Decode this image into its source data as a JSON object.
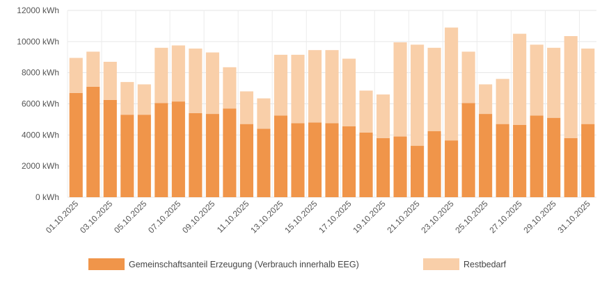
{
  "chart_data": {
    "type": "bar",
    "stacked": true,
    "unit": "kWh",
    "ylim": [
      0,
      12000
    ],
    "yticks": [
      {
        "value": 0,
        "label": "0 kWh"
      },
      {
        "value": 2000,
        "label": "2000 kWh"
      },
      {
        "value": 4000,
        "label": "4000 kWh"
      },
      {
        "value": 6000,
        "label": "6000 kWh"
      },
      {
        "value": 8000,
        "label": "8000 kWh"
      },
      {
        "value": 10000,
        "label": "10000 kWh"
      },
      {
        "value": 12000,
        "label": "12000 kWh"
      }
    ],
    "categories": [
      "01.10.2025",
      "02.10.2025",
      "03.10.2025",
      "04.10.2025",
      "05.10.2025",
      "06.10.2025",
      "07.10.2025",
      "08.10.2025",
      "09.10.2025",
      "10.10.2025",
      "11.10.2025",
      "12.10.2025",
      "13.10.2025",
      "14.10.2025",
      "15.10.2025",
      "16.10.2025",
      "17.10.2025",
      "18.10.2025",
      "19.10.2025",
      "20.10.2025",
      "21.10.2025",
      "22.10.2025",
      "23.10.2025",
      "24.10.2025",
      "25.10.2025",
      "26.10.2025",
      "27.10.2025",
      "28.10.2025",
      "29.10.2025",
      "30.10.2025",
      "31.10.2025"
    ],
    "x_tick_labels_shown": [
      "01.10.2025",
      "03.10.2025",
      "05.10.2025",
      "07.10.2025",
      "09.10.2025",
      "11.10.2025",
      "13.10.2025",
      "15.10.2025",
      "17.10.2025",
      "19.10.2025",
      "21.10.2025",
      "23.10.2025",
      "25.10.2025",
      "27.10.2025",
      "29.10.2025",
      "31.10.2025"
    ],
    "series": [
      {
        "name": "Gemeinschaftsanteil Erzeugung (Verbrauch innerhalb EEG)",
        "color": "#F0954A",
        "values": [
          6700,
          7100,
          6250,
          5300,
          5300,
          6050,
          6150,
          5400,
          5350,
          5700,
          4700,
          4400,
          5250,
          4750,
          4800,
          4750,
          4550,
          4150,
          3800,
          3900,
          3300,
          4250,
          3650,
          6050,
          5350,
          4700,
          4650,
          5250,
          5100,
          3800,
          4700
        ]
      },
      {
        "name": "Restbedarf",
        "color": "#F9CFA9",
        "values": [
          2250,
          2250,
          2450,
          2100,
          1950,
          3550,
          3600,
          4150,
          3950,
          2650,
          2100,
          1950,
          3900,
          4400,
          4650,
          4700,
          4350,
          2700,
          2800,
          6050,
          6500,
          5350,
          7250,
          3300,
          1900,
          2900,
          5850,
          4550,
          4500,
          6550,
          4850
        ]
      }
    ],
    "legend_position": "bottom-center",
    "grid": true
  }
}
